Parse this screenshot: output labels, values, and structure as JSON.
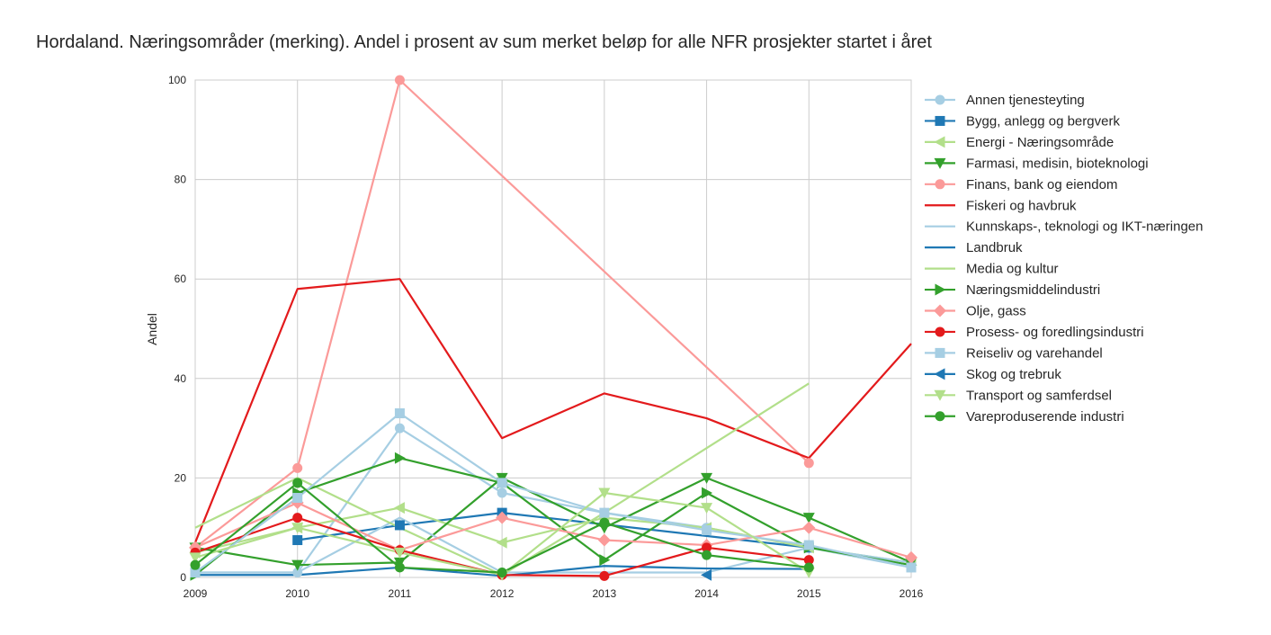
{
  "chart_data": {
    "type": "line",
    "title": "Hordaland. Næringsområder (merking). Andel i prosent av sum merket beløp for alle NFR prosjekter startet i året",
    "xlabel": "",
    "ylabel": "Andel",
    "x": [
      2009,
      2010,
      2011,
      2012,
      2013,
      2014,
      2015,
      2016
    ],
    "x_tick_labels": [
      "2009",
      "2010",
      "2011",
      "2012",
      "2013",
      "2014",
      "2015",
      "2016"
    ],
    "xlim": [
      2009,
      2016
    ],
    "ylim": [
      0,
      100
    ],
    "y_ticks": [
      0,
      20,
      40,
      60,
      80,
      100
    ],
    "y_tick_labels": [
      "0",
      "20",
      "40",
      "60",
      "80",
      "100"
    ],
    "grid": true,
    "legend_position": "right-outside",
    "series": [
      {
        "name": "Annen tjenesteyting",
        "color": "#a6cee3",
        "marker": "circle",
        "values": [
          1,
          1,
          30,
          17,
          13,
          10,
          6,
          2
        ]
      },
      {
        "name": "Bygg, anlegg og bergverk",
        "color": "#1f78b4",
        "marker": "square",
        "values": [
          null,
          7.5,
          10.5,
          13,
          null,
          null,
          6,
          null
        ]
      },
      {
        "name": "Energi - Næringsområde",
        "color": "#b2df8a",
        "marker": "triangle-left",
        "values": [
          5,
          10,
          14,
          7,
          12,
          10,
          6,
          3
        ]
      },
      {
        "name": "Farmasi, medisin, bioteknologi",
        "color": "#33a02c",
        "marker": "triangle-down",
        "values": [
          6,
          2.5,
          3,
          20,
          10,
          20,
          12,
          3
        ]
      },
      {
        "name": "Finans, bank og eiendom",
        "color": "#fb9a99",
        "marker": "circle",
        "values": [
          6,
          22,
          100,
          null,
          null,
          null,
          23,
          null
        ]
      },
      {
        "name": "Fiskeri og havbruk",
        "color": "#e31a1c",
        "marker": "none",
        "values": [
          7,
          58,
          60,
          28,
          37,
          32,
          24,
          47
        ]
      },
      {
        "name": "Kunnskaps-, teknologi og IKT-næringen",
        "color": "#a6cee3",
        "marker": "none",
        "values": [
          1,
          1,
          12,
          1,
          1,
          1,
          6,
          3
        ]
      },
      {
        "name": "Landbruk",
        "color": "#1f78b4",
        "marker": "none",
        "values": [
          0.5,
          0.5,
          2,
          0.3,
          2.3,
          1.8,
          1.7,
          null
        ]
      },
      {
        "name": "Media og kultur",
        "color": "#b2df8a",
        "marker": "none",
        "values": [
          10,
          20,
          10,
          0.5,
          13,
          26,
          39,
          null
        ]
      },
      {
        "name": "Næringsmiddelindustri",
        "color": "#33a02c",
        "marker": "triangle-right",
        "values": [
          0.5,
          17,
          24,
          19,
          3.5,
          17,
          6,
          2.5
        ]
      },
      {
        "name": "Olje, gass",
        "color": "#fb9a99",
        "marker": "diamond",
        "values": [
          6,
          15,
          5.5,
          12,
          7.5,
          6.5,
          10,
          4
        ]
      },
      {
        "name": "Prosess- og foredlingsindustri",
        "color": "#e31a1c",
        "marker": "circle",
        "values": [
          5,
          12,
          5.5,
          0.5,
          0.3,
          6,
          3.5,
          null
        ]
      },
      {
        "name": "Reiseliv og varehandel",
        "color": "#a6cee3",
        "marker": "square",
        "values": [
          1,
          16,
          33,
          19,
          13,
          9.5,
          6.5,
          2
        ]
      },
      {
        "name": "Skog og trebruk",
        "color": "#1f78b4",
        "marker": "triangle-left",
        "values": [
          null,
          null,
          null,
          null,
          null,
          0.5,
          null,
          null
        ]
      },
      {
        "name": "Transport og samferdsel",
        "color": "#b2df8a",
        "marker": "triangle-down",
        "values": [
          4,
          10,
          5,
          0.5,
          17,
          14,
          1,
          null
        ]
      },
      {
        "name": "Vareproduserende industri",
        "color": "#33a02c",
        "marker": "circle",
        "values": [
          2.5,
          19,
          2,
          1,
          11,
          4.5,
          2,
          null
        ]
      }
    ]
  }
}
